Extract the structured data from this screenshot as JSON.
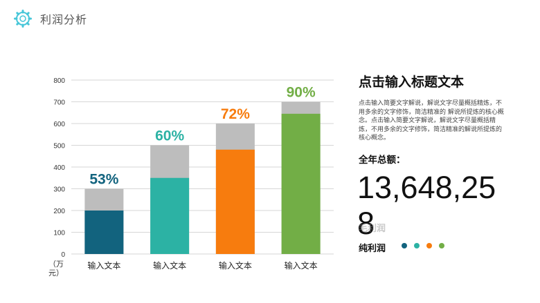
{
  "header": {
    "title": "利润分析"
  },
  "chart_data": {
    "type": "bar",
    "categories": [
      "输入文本",
      "输入文本",
      "输入文本",
      "输入文本"
    ],
    "series": [
      {
        "values": [
          200,
          350,
          480,
          645
        ]
      },
      {
        "values": [
          300,
          500,
          600,
          700
        ]
      }
    ],
    "percent_labels": [
      "53%",
      "60%",
      "72%",
      "90%"
    ],
    "ylim": [
      0,
      800
    ],
    "yticks": [
      0,
      100,
      200,
      300,
      400,
      500,
      600,
      700,
      800
    ],
    "ylabel": "（万元）",
    "grid": true,
    "colors": [
      "#12637e",
      "#2cb2a4",
      "#f77c0e",
      "#72ae46"
    ],
    "remainder_color": "#bdbdbd"
  },
  "panel": {
    "title": "点击输入标题文本",
    "body": "点击输入简要文字解说，解说文字尽量概括精炼，不用多余的文字修饰，简洁精准的 解说所提炼的核心概念。点击输入简要文字解说，解说文字尽量概括精炼，不用多余的文字修饰，简洁精准的解说所提炼的核心概念。",
    "total_label": "全年总额：",
    "total_value": "13,648,258",
    "ghost_label": "毛利润",
    "net_label": "纯利润",
    "dot_colors": [
      "#12637e",
      "#2cb2a4",
      "#f77c0e",
      "#72ae46"
    ]
  }
}
